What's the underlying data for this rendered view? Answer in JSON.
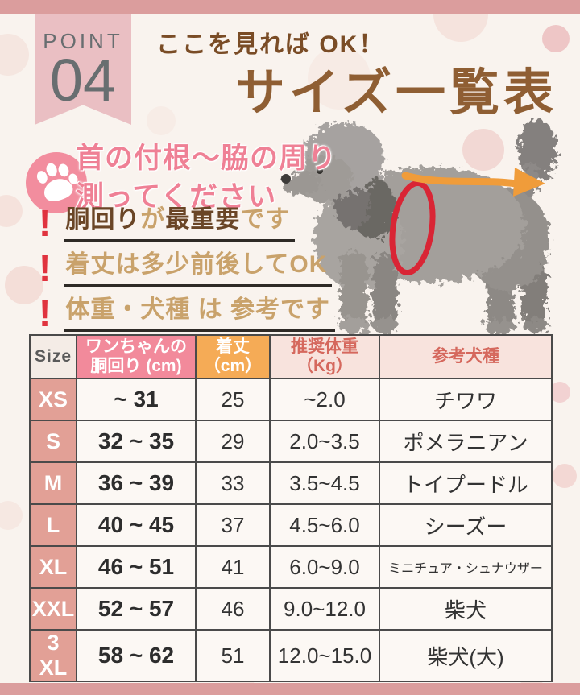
{
  "colors": {
    "bg": "#f9f3ee",
    "bar": "#db9d9d",
    "ribbon": "#eabfc3",
    "title_brown": "#8f5e33",
    "pink_text": "#ef8095",
    "paw_pink": "#f28d9e",
    "alert_red": "#e0333f",
    "note_dark": "#6a4526",
    "note_tan": "#c9a26b",
    "girth_header": "#f28a9b",
    "length_header": "#f5ab56",
    "soft_header_text": "#d5685d",
    "row_label": "#e2a096",
    "arrow_orange": "#f09c3a",
    "measure_red": "#d92535"
  },
  "badge": {
    "label": "POINT",
    "number": "04"
  },
  "header": {
    "tagline": "ここを見れば OK！",
    "title": "サイズ一覧表"
  },
  "measure_callout": {
    "icon": "paw-icon",
    "line1": "首の付根～脇の周り",
    "line2": "測ってください"
  },
  "notes": [
    {
      "mark": "!",
      "segments": [
        {
          "text": "胴回り",
          "emphasis": true
        },
        {
          "text": "が",
          "emphasis": false
        },
        {
          "text": "最重要",
          "emphasis": true
        },
        {
          "text": "です",
          "emphasis": false
        }
      ]
    },
    {
      "mark": "!",
      "segments": [
        {
          "text": "着丈は多少前後してOK",
          "emphasis": false
        }
      ]
    },
    {
      "mark": "!",
      "segments": [
        {
          "text": "体重・犬種 は 参考です",
          "emphasis": false
        }
      ]
    }
  ],
  "dog_figure": {
    "subject": "グレーのトイプードル（横向き）",
    "girth_marker": "girth-measure-ellipse",
    "length_marker": "back-length-arrow"
  },
  "size_table": {
    "columns": [
      "Size",
      "ワンちゃんの\n胴回り (cm)",
      "着丈\n（cm）",
      "推奨体重\n（Kg）",
      "参考犬種"
    ],
    "rows": [
      {
        "size": "XS",
        "girth": "~ 31",
        "length": "25",
        "weight": "~2.0",
        "breed": "チワワ"
      },
      {
        "size": "S",
        "girth": "32 ~ 35",
        "length": "29",
        "weight": "2.0~3.5",
        "breed": "ポメラニアン"
      },
      {
        "size": "M",
        "girth": "36 ~ 39",
        "length": "33",
        "weight": "3.5~4.5",
        "breed": "トイプードル"
      },
      {
        "size": "L",
        "girth": "40 ~ 45",
        "length": "37",
        "weight": "4.5~6.0",
        "breed": "シーズー"
      },
      {
        "size": "XL",
        "girth": "46 ~ 51",
        "length": "41",
        "weight": "6.0~9.0",
        "breed": "ミニチュア・シュナウザー"
      },
      {
        "size": "XXL",
        "girth": "52 ~ 57",
        "length": "46",
        "weight": "9.0~12.0",
        "breed": "柴犬"
      },
      {
        "size": "3 XL",
        "girth": "58 ~ 62",
        "length": "51",
        "weight": "12.0~15.0",
        "breed": "柴犬(大)"
      }
    ]
  }
}
